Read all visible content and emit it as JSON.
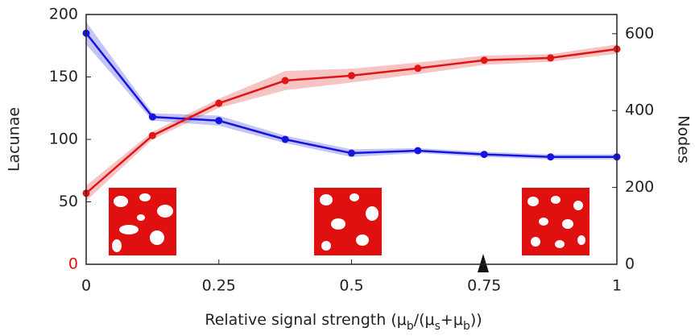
{
  "chart_data": {
    "type": "line",
    "x": [
      0,
      0.125,
      0.25,
      0.375,
      0.5,
      0.625,
      0.75,
      0.875,
      1
    ],
    "series": [
      {
        "name": "Lacunae",
        "color": "#1515dd",
        "axis": "y",
        "values": [
          185,
          118,
          115,
          100,
          89,
          91,
          88,
          86,
          86
        ],
        "band": [
          9,
          3,
          4,
          3,
          3,
          2,
          2,
          2,
          2
        ]
      },
      {
        "name": "Nodes",
        "color": "#e01515",
        "axis": "y2",
        "values": [
          185,
          335,
          419,
          478,
          491,
          510,
          531,
          537,
          560
        ],
        "band": [
          20,
          10,
          12,
          25,
          18,
          15,
          12,
          10,
          12
        ]
      }
    ],
    "xlim": [
      0,
      1
    ],
    "xticks": [
      0,
      0.25,
      0.5,
      0.75,
      1
    ],
    "ylim": [
      0,
      200
    ],
    "yticks": [
      0,
      50,
      100,
      150,
      200
    ],
    "y2lim": [
      0,
      650
    ],
    "y2ticks": [
      0,
      200,
      400,
      600
    ],
    "ylabel": "Lacunae",
    "y2label": "Nodes",
    "zero_label_color": "#e01515",
    "xlabel_parts": [
      {
        "text": "Relative signal strength (μ"
      },
      {
        "text": "b",
        "sub": true
      },
      {
        "text": "/(μ"
      },
      {
        "text": "s",
        "sub": true
      },
      {
        "text": "+μ"
      },
      {
        "text": "b",
        "sub": true
      },
      {
        "text": "))"
      }
    ]
  }
}
